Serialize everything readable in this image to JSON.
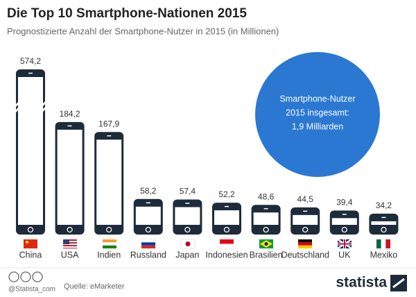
{
  "chart_data": {
    "type": "bar",
    "title": "Die Top 10 Smartphone-Nationen 2015",
    "subtitle": "Prognostizierte Anzahl der Smartphone-Nutzer in 2015 (in Millionen)",
    "categories": [
      "China",
      "USA",
      "Indien",
      "Russland",
      "Japan",
      "Indonesien",
      "Brasilien",
      "Deutschland",
      "UK",
      "Mexiko"
    ],
    "values": [
      574.2,
      184.2,
      167.9,
      58.2,
      57.4,
      52.2,
      48.6,
      44.5,
      39.4,
      34.2
    ],
    "value_labels": [
      "574,2",
      "184,2",
      "167,9",
      "58,2",
      "57,4",
      "52,2",
      "48,6",
      "44,5",
      "39,4",
      "34,2"
    ],
    "color": "#1d2b3a",
    "annotation": [
      "Smartphone-Nutzer",
      "2015 insgesamt:",
      "1,9 Milliarden"
    ],
    "annotation_color": "#2a78d2"
  },
  "footer": {
    "handle": "@Statista_com",
    "source": "Quelle: eMarketer",
    "brand": "statista"
  }
}
